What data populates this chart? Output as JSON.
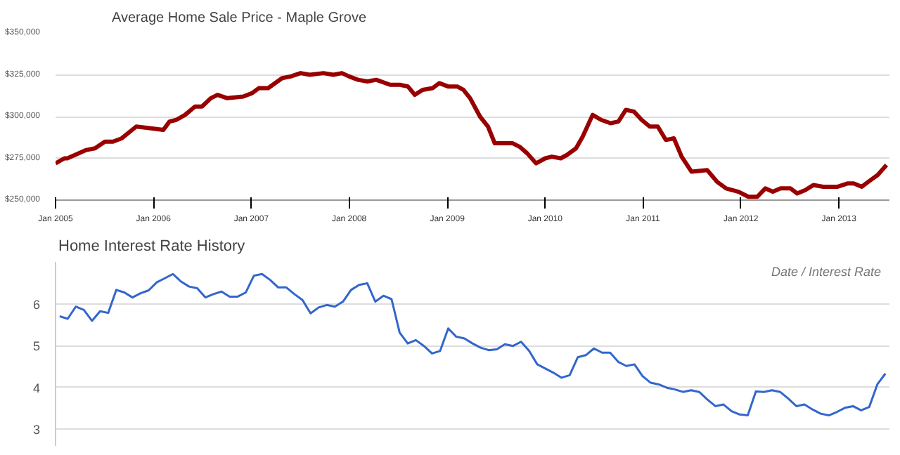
{
  "chart_data": [
    {
      "type": "line",
      "title": "Average Home Sale Price - Maple Grove",
      "x": [
        "2005-01-01",
        "2005-02-03",
        "2005-02-14",
        "2005-04-26",
        "2005-05-28",
        "2005-07-04",
        "2005-08-03",
        "2005-09-05",
        "2005-10-29",
        "2005-12-23",
        "2006-02-07",
        "2006-03-02",
        "2006-03-27",
        "2006-04-29",
        "2006-06-05",
        "2006-07-01",
        "2006-08-03",
        "2006-08-28",
        "2006-10-04",
        "2006-12-02",
        "2007-01-04",
        "2007-01-29",
        "2007-03-05",
        "2007-04-26",
        "2007-05-28",
        "2007-07-04",
        "2007-08-07",
        "2007-09-27",
        "2007-11-03",
        "2007-12-05",
        "2008-01-01",
        "2008-02-03",
        "2008-03-09",
        "2008-04-11",
        "2008-06-02",
        "2008-07-08",
        "2008-08-07",
        "2008-09-02",
        "2008-10-01",
        "2008-11-07",
        "2008-12-02",
        "2009-01-04",
        "2009-02-07",
        "2009-03-02",
        "2009-03-27",
        "2009-05-03",
        "2009-06-02",
        "2009-06-27",
        "2009-09-02",
        "2009-09-27",
        "2009-10-26",
        "2009-11-28",
        "2010-01-01",
        "2010-01-26",
        "2010-02-28",
        "2010-03-23",
        "2010-04-26",
        "2010-05-21",
        "2010-06-27",
        "2010-07-29",
        "2010-09-02",
        "2010-10-01",
        "2010-10-29",
        "2010-11-28",
        "2010-12-27",
        "2011-01-26",
        "2011-02-25",
        "2011-03-27",
        "2011-04-26",
        "2011-05-25",
        "2011-07-01",
        "2011-08-28",
        "2011-10-04",
        "2011-11-07",
        "2011-12-23",
        "2012-01-29",
        "2012-03-02",
        "2012-04-01",
        "2012-04-29",
        "2012-05-28",
        "2012-07-04",
        "2012-07-29",
        "2012-08-28",
        "2012-09-27",
        "2012-11-03",
        "2012-11-28",
        "2012-12-27",
        "2013-02-03",
        "2013-02-25",
        "2013-03-27",
        "2013-04-29",
        "2013-05-25",
        "2013-06-27"
      ],
      "series": [
        {
          "color": "#990000",
          "values": [
            272000,
            275000,
            275000,
            280000,
            281000,
            285000,
            285000,
            287000,
            294000,
            293000,
            292000,
            297000,
            298000,
            301000,
            306000,
            306000,
            311000,
            313000,
            311000,
            312000,
            314000,
            317000,
            317000,
            323000,
            324000,
            326000,
            325000,
            326000,
            325000,
            326000,
            324000,
            322000,
            321000,
            322000,
            319000,
            319000,
            318000,
            313000,
            316000,
            317000,
            320000,
            318000,
            318000,
            316000,
            311000,
            300000,
            294000,
            284000,
            284000,
            282000,
            278000,
            272000,
            275000,
            276000,
            275000,
            277000,
            281000,
            288000,
            301000,
            298000,
            296000,
            297000,
            304000,
            303000,
            298000,
            294000,
            294000,
            286000,
            287000,
            276000,
            267000,
            268000,
            261000,
            257000,
            255000,
            252000,
            252000,
            257000,
            255000,
            257000,
            257000,
            254000,
            256000,
            259000,
            258000,
            258000,
            258000,
            260000,
            260000,
            258000,
            262000,
            265000,
            271000
          ]
        }
      ],
      "xlim": [
        "2005-01-01",
        "2013-07-08"
      ],
      "xticks": [
        {
          "value": "2005-01-01",
          "label": "Jan 2005"
        },
        {
          "value": "2006-01-01",
          "label": "Jan 2006"
        },
        {
          "value": "2007-01-01",
          "label": "Jan 2007"
        },
        {
          "value": "2008-01-01",
          "label": "Jan 2008"
        },
        {
          "value": "2009-01-01",
          "label": "Jan 2009"
        },
        {
          "value": "2010-01-01",
          "label": "Jan 2010"
        },
        {
          "value": "2011-01-01",
          "label": "Jan 2011"
        },
        {
          "value": "2012-01-01",
          "label": "Jan 2012"
        },
        {
          "value": "2013-01-01",
          "label": "Jan 2013"
        }
      ],
      "ylim": [
        250000,
        350000
      ],
      "yticks": [
        {
          "value": 250000,
          "label": "$250,000"
        },
        {
          "value": 275000,
          "label": "$275,000"
        },
        {
          "value": 300000,
          "label": "$300,000"
        },
        {
          "value": 325000,
          "label": "$325,000"
        },
        {
          "value": 350000,
          "label": "$350,000"
        }
      ],
      "grid": "y"
    },
    {
      "type": "line",
      "title": "Home Interest Rate History",
      "annotations": [
        "Date / Interest Rate"
      ],
      "categories": [
        null,
        null,
        null,
        null,
        null,
        null,
        null,
        null,
        null,
        null,
        null,
        null,
        null,
        null,
        null,
        null,
        null,
        null,
        null,
        null,
        null,
        null,
        null,
        null,
        null,
        null,
        null,
        null,
        null,
        null,
        null,
        null,
        null,
        null,
        null,
        null,
        null,
        null,
        null,
        null,
        null,
        null,
        null,
        null,
        null,
        null,
        null,
        null,
        null,
        null,
        null,
        null,
        null,
        null,
        null,
        null,
        null,
        null,
        null,
        null,
        null,
        null,
        null,
        null,
        null,
        null,
        null,
        null,
        null,
        null,
        null,
        null,
        null,
        null,
        null,
        null,
        null,
        null,
        null,
        null,
        null,
        null,
        null,
        null,
        null,
        null,
        null,
        null,
        null,
        null,
        null,
        null,
        null,
        null,
        null,
        null,
        null,
        null,
        null,
        null,
        null,
        null,
        null
      ],
      "series": [
        {
          "color": "#3366cc",
          "values": [
            5.7,
            5.64,
            5.93,
            5.85,
            5.59,
            5.82,
            5.78,
            6.33,
            6.27,
            6.15,
            6.25,
            6.32,
            6.51,
            6.61,
            6.71,
            6.53,
            6.41,
            6.37,
            6.15,
            6.23,
            6.29,
            6.17,
            6.17,
            6.27,
            6.67,
            6.71,
            6.57,
            6.39,
            6.39,
            6.23,
            6.09,
            5.77,
            5.91,
            5.97,
            5.93,
            6.05,
            6.33,
            6.45,
            6.49,
            6.05,
            6.19,
            6.11,
            5.31,
            5.05,
            5.13,
            4.99,
            4.81,
            4.87,
            5.41,
            5.21,
            5.17,
            5.05,
            4.95,
            4.89,
            4.91,
            5.03,
            4.99,
            5.09,
            4.87,
            4.55,
            4.45,
            4.35,
            4.23,
            4.29,
            4.72,
            4.77,
            4.93,
            4.83,
            4.83,
            4.61,
            4.51,
            4.55,
            4.27,
            4.11,
            4.07,
            3.99,
            3.95,
            3.89,
            3.93,
            3.89,
            3.71,
            3.55,
            3.59,
            3.43,
            3.35,
            3.33,
            3.9,
            3.89,
            3.93,
            3.89,
            3.73,
            3.55,
            3.59,
            3.47,
            3.37,
            3.33,
            3.41,
            3.51,
            3.55,
            3.45,
            3.53,
            4.07,
            4.33
          ]
        }
      ],
      "ylim": [
        2.6,
        7.0
      ],
      "yticks": [
        3,
        4,
        5,
        6
      ],
      "grid": "y",
      "tick_labels": "y"
    }
  ]
}
